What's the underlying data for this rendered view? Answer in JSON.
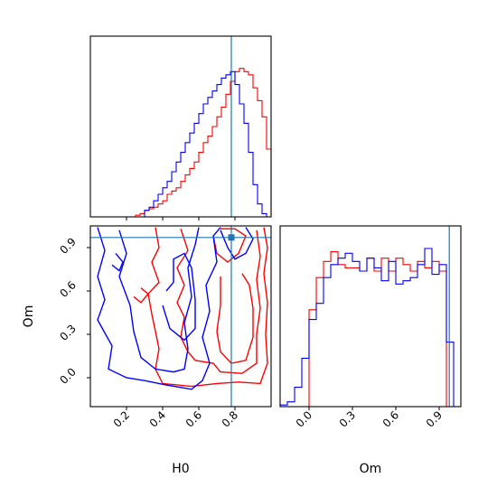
{
  "colors": {
    "red": "#ff0000",
    "blue": "#0000ff",
    "truth": "#1f77b4"
  },
  "chart_data": {
    "type": "corner",
    "params": [
      "H0",
      "Om"
    ],
    "truths": {
      "H0": 0.78,
      "Om": 0.97
    },
    "panels": {
      "hist_H0": {
        "type": "histogram",
        "xlim": [
          0.0,
          1.0
        ],
        "bin_edges": [
          0.0,
          0.025,
          0.05,
          0.075,
          0.1,
          0.125,
          0.15,
          0.175,
          0.2,
          0.225,
          0.25,
          0.275,
          0.3,
          0.325,
          0.35,
          0.375,
          0.4,
          0.425,
          0.45,
          0.475,
          0.5,
          0.525,
          0.55,
          0.575,
          0.6,
          0.625,
          0.65,
          0.675,
          0.7,
          0.725,
          0.75,
          0.775,
          0.8,
          0.825,
          0.85,
          0.875,
          0.9,
          0.925,
          0.95,
          0.975,
          1.0
        ],
        "series": [
          {
            "color": "red",
            "values": [
              0,
              0,
              0,
              0,
              0,
              0,
              0,
              0,
              0,
              0,
              0.01,
              0.02,
              0.04,
              0.05,
              0.06,
              0.08,
              0.1,
              0.14,
              0.16,
              0.18,
              0.22,
              0.26,
              0.3,
              0.34,
              0.4,
              0.46,
              0.5,
              0.56,
              0.62,
              0.68,
              0.76,
              0.84,
              0.9,
              0.92,
              0.9,
              0.88,
              0.8,
              0.72,
              0.62,
              0.42
            ]
          },
          {
            "color": "blue",
            "values": [
              0,
              0,
              0,
              0,
              0,
              0,
              0,
              0,
              0,
              0,
              0,
              0,
              0.04,
              0.06,
              0.1,
              0.14,
              0.18,
              0.22,
              0.28,
              0.34,
              0.4,
              0.46,
              0.52,
              0.58,
              0.64,
              0.7,
              0.74,
              0.78,
              0.82,
              0.86,
              0.88,
              0.9,
              0.82,
              0.7,
              0.58,
              0.4,
              0.2,
              0.08,
              0.02,
              0
            ]
          }
        ],
        "ylim": [
          0,
          1.0
        ]
      },
      "hist_Om": {
        "type": "histogram",
        "xlim": [
          -0.2,
          1.05
        ],
        "xticks": [
          0.0,
          0.3,
          0.6,
          0.9
        ],
        "xtick_labels": [
          "0.0",
          "0.3",
          "0.6",
          "0.9"
        ],
        "bin_edges": [
          -0.2,
          -0.15,
          -0.1,
          -0.05,
          0.0,
          0.05,
          0.1,
          0.15,
          0.2,
          0.25,
          0.3,
          0.35,
          0.4,
          0.45,
          0.5,
          0.55,
          0.6,
          0.65,
          0.7,
          0.75,
          0.8,
          0.85,
          0.9,
          0.95,
          1.0,
          1.05
        ],
        "series": [
          {
            "color": "red",
            "values": [
              0,
              0,
              0,
              0,
              0.6,
              0.8,
              0.9,
              0.96,
              0.88,
              0.86,
              0.86,
              0.84,
              0.92,
              0.84,
              0.92,
              0.84,
              0.92,
              0.88,
              0.84,
              0.9,
              0.86,
              0.9,
              0.84,
              0,
              0
            ]
          },
          {
            "color": "blue",
            "values": [
              0.01,
              0.03,
              0.12,
              0.3,
              0.54,
              0.64,
              0.8,
              0.88,
              0.92,
              0.95,
              0.9,
              0.84,
              0.92,
              0.86,
              0.78,
              0.9,
              0.76,
              0.78,
              0.8,
              0.88,
              0.98,
              0.82,
              0.88,
              0.4,
              0
            ]
          }
        ],
        "ylim": [
          0,
          1.0
        ],
        "xlabel": "Om"
      },
      "contour_H0_Om": {
        "type": "contour",
        "xlim": [
          0.0,
          1.0
        ],
        "ylim": [
          -0.2,
          1.05
        ],
        "xticks": [
          0.2,
          0.4,
          0.6,
          0.8
        ],
        "xtick_labels": [
          "0.2",
          "0.4",
          "0.6",
          "0.8"
        ],
        "yticks": [
          0.0,
          0.3,
          0.6,
          0.9
        ],
        "ytick_labels": [
          "0.0",
          "0.3",
          "0.6",
          "0.9"
        ],
        "xlabel": "H0",
        "ylabel": "Om",
        "contours": [
          {
            "color": "red",
            "points": [
              [
                0.36,
                1.04
              ],
              [
                0.38,
                0.9
              ],
              [
                0.34,
                0.8
              ],
              [
                0.38,
                0.66
              ],
              [
                0.32,
                0.58
              ],
              [
                0.34,
                0.44
              ],
              [
                0.36,
                0.32
              ],
              [
                0.38,
                0.2
              ],
              [
                0.36,
                0.06
              ],
              [
                0.4,
                -0.04
              ],
              [
                0.56,
                -0.06
              ],
              [
                0.7,
                -0.04
              ],
              [
                0.82,
                -0.03
              ],
              [
                0.94,
                -0.04
              ],
              [
                0.98,
                0.1
              ],
              [
                0.97,
                0.3
              ],
              [
                0.98,
                0.52
              ],
              [
                0.96,
                0.72
              ],
              [
                0.98,
                0.9
              ],
              [
                0.96,
                1.04
              ]
            ]
          },
          {
            "color": "red",
            "points": [
              [
                0.5,
                1.03
              ],
              [
                0.54,
                0.88
              ],
              [
                0.48,
                0.76
              ],
              [
                0.52,
                0.64
              ],
              [
                0.48,
                0.52
              ],
              [
                0.52,
                0.42
              ],
              [
                0.5,
                0.28
              ],
              [
                0.54,
                0.18
              ],
              [
                0.58,
                0.12
              ],
              [
                0.68,
                0.1
              ],
              [
                0.72,
                0.04
              ],
              [
                0.84,
                0.03
              ],
              [
                0.92,
                0.1
              ],
              [
                0.92,
                0.3
              ],
              [
                0.94,
                0.48
              ],
              [
                0.92,
                0.68
              ],
              [
                0.94,
                0.84
              ],
              [
                0.92,
                1.02
              ]
            ]
          },
          {
            "color": "red",
            "points": [
              [
                0.72,
                0.7
              ],
              [
                0.72,
                0.5
              ],
              [
                0.7,
                0.32
              ],
              [
                0.72,
                0.18
              ],
              [
                0.78,
                0.1
              ],
              [
                0.86,
                0.12
              ],
              [
                0.9,
                0.28
              ],
              [
                0.9,
                0.48
              ],
              [
                0.88,
                0.64
              ],
              [
                0.84,
                0.72
              ]
            ]
          },
          {
            "color": "red",
            "points": [
              [
                0.68,
                0.98
              ],
              [
                0.7,
                0.86
              ],
              [
                0.76,
                0.8
              ],
              [
                0.82,
                0.86
              ],
              [
                0.86,
                0.98
              ],
              [
                0.8,
                1.03
              ],
              [
                0.72,
                1.03
              ]
            ]
          },
          {
            "color": "red",
            "points": [
              [
                0.28,
                0.62
              ],
              [
                0.32,
                0.58
              ],
              [
                0.28,
                0.52
              ],
              [
                0.24,
                0.56
              ]
            ]
          },
          {
            "color": "blue",
            "points": [
              [
                0.04,
                1.04
              ],
              [
                0.08,
                0.88
              ],
              [
                0.04,
                0.7
              ],
              [
                0.08,
                0.54
              ],
              [
                0.04,
                0.4
              ],
              [
                0.12,
                0.22
              ],
              [
                0.1,
                0.06
              ],
              [
                0.2,
                0.0
              ],
              [
                0.3,
                -0.02
              ],
              [
                0.42,
                -0.05
              ],
              [
                0.56,
                -0.08
              ],
              [
                0.62,
                -0.02
              ],
              [
                0.66,
                0.1
              ],
              [
                0.62,
                0.28
              ],
              [
                0.66,
                0.46
              ],
              [
                0.64,
                0.64
              ],
              [
                0.7,
                0.8
              ],
              [
                0.68,
                0.98
              ],
              [
                0.72,
                1.04
              ]
            ]
          },
          {
            "color": "blue",
            "points": [
              [
                0.16,
                1.02
              ],
              [
                0.2,
                0.86
              ],
              [
                0.16,
                0.7
              ],
              [
                0.22,
                0.5
              ],
              [
                0.24,
                0.32
              ],
              [
                0.28,
                0.14
              ],
              [
                0.36,
                0.06
              ],
              [
                0.46,
                0.04
              ],
              [
                0.52,
                0.06
              ],
              [
                0.54,
                0.2
              ],
              [
                0.52,
                0.38
              ],
              [
                0.56,
                0.56
              ],
              [
                0.54,
                0.76
              ],
              [
                0.58,
                0.92
              ],
              [
                0.6,
                1.04
              ]
            ]
          },
          {
            "color": "blue",
            "points": [
              [
                0.4,
                0.5
              ],
              [
                0.44,
                0.34
              ],
              [
                0.52,
                0.26
              ],
              [
                0.58,
                0.34
              ],
              [
                0.58,
                0.54
              ],
              [
                0.56,
                0.76
              ],
              [
                0.52,
                0.86
              ],
              [
                0.46,
                0.82
              ],
              [
                0.46,
                0.66
              ],
              [
                0.42,
                0.6
              ]
            ]
          },
          {
            "color": "blue",
            "points": [
              [
                0.14,
                0.86
              ],
              [
                0.18,
                0.8
              ],
              [
                0.16,
                0.74
              ],
              [
                0.12,
                0.78
              ]
            ]
          },
          {
            "color": "blue",
            "points": [
              [
                0.72,
                1.02
              ],
              [
                0.76,
                0.9
              ],
              [
                0.8,
                0.82
              ],
              [
                0.86,
                0.86
              ],
              [
                0.9,
                0.96
              ],
              [
                0.86,
                1.04
              ]
            ]
          }
        ]
      }
    }
  }
}
